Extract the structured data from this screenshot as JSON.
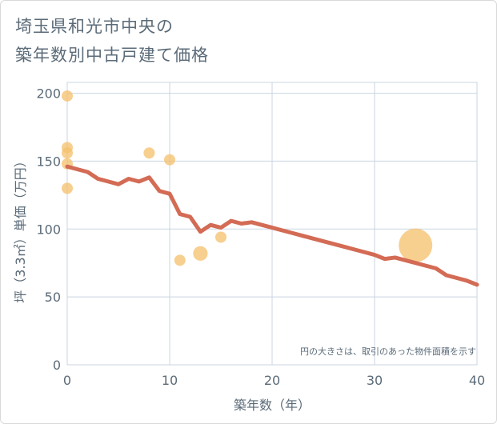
{
  "title_lines": [
    "埼玉県和光市中央の",
    "築年数別中古戸建て価格"
  ],
  "chart_data": {
    "type": "scatter",
    "xlabel": "築年数（年）",
    "ylabel": "坪（3.3㎡）単価（万円）",
    "xlim": [
      0,
      40
    ],
    "ylim": [
      0,
      208
    ],
    "xticks": [
      0,
      10,
      20,
      30,
      40
    ],
    "yticks": [
      0,
      50,
      100,
      150,
      200
    ],
    "grid": true,
    "note": "円の大きさは、取引のあった物件面積を示す",
    "colors": {
      "line": "#d36b55",
      "bubble": "#f5c170",
      "grid": "#c9d5e1",
      "text": "#5b6b78"
    },
    "scatter": [
      {
        "x": 0,
        "y": 198,
        "size": 1
      },
      {
        "x": 0,
        "y": 160,
        "size": 1
      },
      {
        "x": 0,
        "y": 156,
        "size": 1
      },
      {
        "x": 0,
        "y": 148,
        "size": 1
      },
      {
        "x": 0,
        "y": 130,
        "size": 1
      },
      {
        "x": 8,
        "y": 156,
        "size": 1
      },
      {
        "x": 10,
        "y": 151,
        "size": 1
      },
      {
        "x": 11,
        "y": 77,
        "size": 1
      },
      {
        "x": 13,
        "y": 82,
        "size": 1.3
      },
      {
        "x": 15,
        "y": 94,
        "size": 1
      },
      {
        "x": 34,
        "y": 88,
        "size": 3
      }
    ],
    "trend": {
      "x": [
        0,
        1,
        2,
        3,
        4,
        5,
        6,
        7,
        8,
        9,
        10,
        11,
        12,
        13,
        14,
        15,
        16,
        17,
        18,
        19,
        20,
        21,
        22,
        23,
        24,
        25,
        26,
        27,
        28,
        29,
        30,
        31,
        32,
        33,
        34,
        35,
        36,
        37,
        38,
        39,
        40
      ],
      "y": [
        146,
        144,
        142,
        137,
        135,
        133,
        137,
        135,
        138,
        128,
        126,
        111,
        109,
        98,
        103,
        101,
        106,
        104,
        105,
        103,
        101,
        99,
        97,
        95,
        93,
        91,
        89,
        87,
        85,
        83,
        81,
        78,
        79,
        77,
        75,
        73,
        71,
        66,
        64,
        62,
        59
      ]
    }
  }
}
